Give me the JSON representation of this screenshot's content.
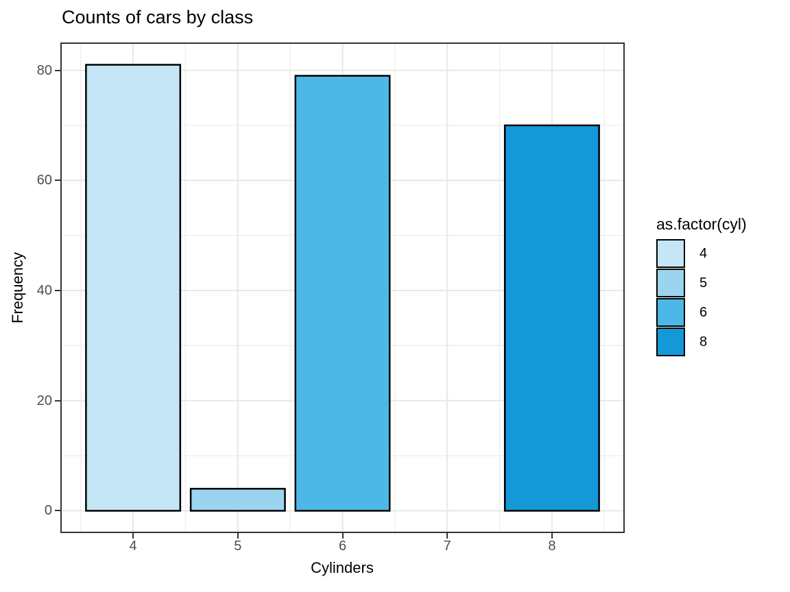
{
  "chart_data": {
    "type": "bar",
    "title": "Counts of cars by class",
    "xlabel": "Cylinders",
    "ylabel": "Frequency",
    "categories": [
      4,
      5,
      6,
      8
    ],
    "values": [
      81,
      4,
      79,
      70
    ],
    "bar_width": 0.9,
    "x_ticks": [
      4,
      5,
      6,
      7,
      8
    ],
    "x_minor_gridlines": [
      3.5,
      4.5,
      5.5,
      6.5,
      7.5,
      8.5
    ],
    "y_ticks": [
      0,
      20,
      40,
      60,
      80
    ],
    "y_minor_gridlines": [
      10,
      30,
      50,
      70
    ],
    "xlim": [
      3.305,
      8.695
    ],
    "ylim": [
      -4.05,
      85.05
    ],
    "grid": true,
    "legend": {
      "title": "as.factor(cyl)",
      "position": "right",
      "entries": [
        {
          "label": "4",
          "color": "#C4E6F6"
        },
        {
          "label": "5",
          "color": "#9BD4EF"
        },
        {
          "label": "6",
          "color": "#4DB8E8"
        },
        {
          "label": "8",
          "color": "#1598D8"
        }
      ]
    },
    "colors": {
      "bar_stroke": "#000000",
      "panel_border": "#333333",
      "grid_major": "#E7E7E7",
      "grid_minor": "#EFEFEF",
      "tick_mark": "#333333",
      "tick_label": "#4D4D4D",
      "text": "#000000",
      "background": "#FFFFFF"
    }
  }
}
